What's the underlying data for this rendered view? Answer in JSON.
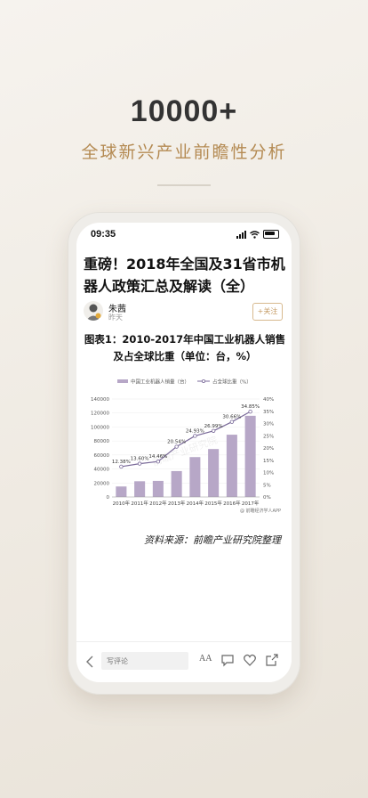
{
  "hero": {
    "title": "10000+",
    "subtitle": "全球新兴产业前瞻性分析"
  },
  "status_bar": {
    "time": "09:35"
  },
  "article": {
    "title": "重磅！2018年全国及31省市机器人政策汇总及解读（全）",
    "author": "朱茜",
    "date": "昨天",
    "follow_label": "+关注",
    "chart_heading": "图表1：2010-2017年中国工业机器人销售及占全球比重（单位：台，%）",
    "source_note": "资料来源：前瞻产业研究院整理"
  },
  "chart_data": {
    "type": "bar+line",
    "categories": [
      "2010年",
      "2011年",
      "2012年",
      "2013年",
      "2014年",
      "2015年",
      "2016年",
      "2017年"
    ],
    "series": [
      {
        "name": "中国工业机器人销量（台）",
        "type": "bar",
        "values": [
          15000,
          22500,
          23000,
          37000,
          57000,
          68500,
          89000,
          116000
        ],
        "color": "#b7a7c7"
      },
      {
        "name": "占全球比重（%）",
        "type": "line",
        "values": [
          12.38,
          13.6,
          14.46,
          20.54,
          24.93,
          26.99,
          30.66,
          34.85
        ],
        "labels": [
          "12.38%",
          "13.60%",
          "14.46%",
          "20.54%",
          "24.93%",
          "26.99%",
          "30.66%",
          "34.85%"
        ],
        "color": "#7a6a99"
      }
    ],
    "y_left": {
      "min": 0,
      "max": 140000,
      "ticks": [
        "0",
        "20000",
        "40000",
        "60000",
        "80000",
        "100000",
        "120000",
        "140000"
      ]
    },
    "y_right": {
      "min": 0,
      "max": 40,
      "ticks": [
        "0%",
        "5%",
        "10%",
        "15%",
        "20%",
        "25%",
        "30%",
        "35%",
        "40%"
      ]
    },
    "grid": true,
    "legend": "top",
    "watermark": "前瞻产业研究院",
    "credit": "@ 前瞻经济学人APP"
  },
  "bottom_bar": {
    "comment_placeholder": "写评论",
    "font_icon_label": "AA",
    "icons": [
      "back-icon",
      "font-size-icon",
      "comment-icon",
      "like-heart-icon",
      "share-icon"
    ]
  }
}
